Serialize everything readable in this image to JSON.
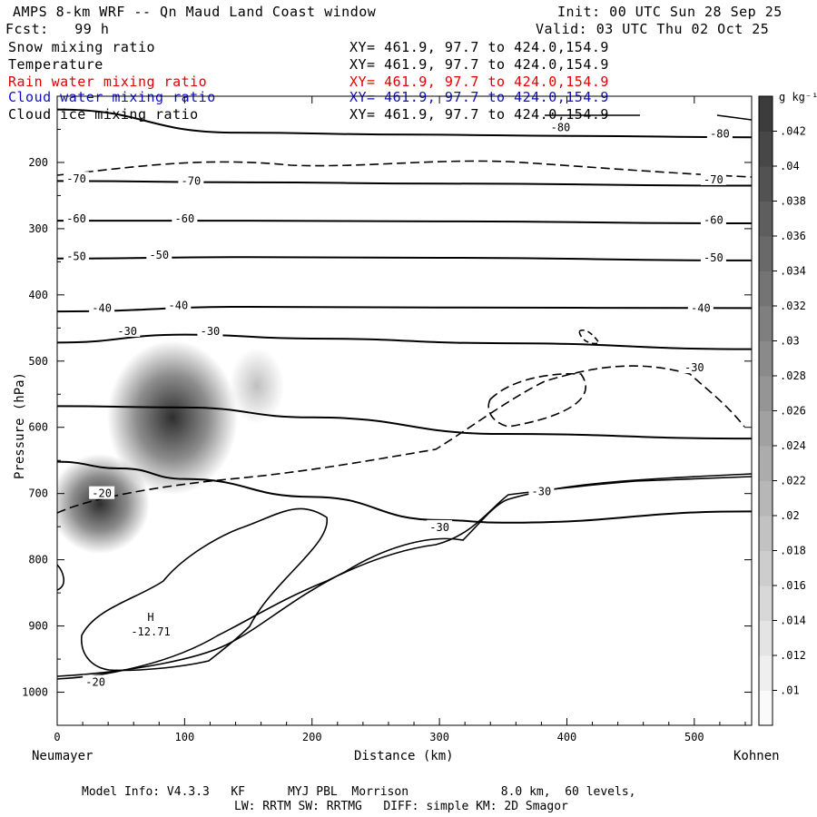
{
  "header": {
    "title": "AMPS 8-km WRF -- Qn Maud Land Coast window",
    "init": "Init: 00 UTC Sun 28 Sep 25",
    "fcst": "Fcst:   99 h",
    "valid": "Valid: 03 UTC Thu 02 Oct 25"
  },
  "fields": [
    {
      "label": "Snow mixing ratio",
      "xy": "XY= 461.9, 97.7 to 424.0,154.9",
      "color": "#000000"
    },
    {
      "label": "Temperature",
      "xy": "XY= 461.9, 97.7 to 424.0,154.9",
      "color": "#000000"
    },
    {
      "label": "Rain water mixing ratio",
      "xy": "XY= 461.9, 97.7 to 424.0,154.9",
      "color": "#e00000"
    },
    {
      "label": "Cloud water mixing ratio",
      "xy": "XY= 461.9, 97.7 to 424.0,154.9",
      "color": "#1010c0"
    },
    {
      "label": "Cloud ice mixing ratio",
      "xy": "XY= 461.9, 97.7 to 424.0,154.9",
      "color": "#000000"
    }
  ],
  "chart_data": {
    "type": "heatmap",
    "xlabel": "Distance (km)",
    "ylabel": "Pressure (hPa)",
    "x_ticks": [
      0,
      100,
      200,
      300,
      400,
      500
    ],
    "y_ticks": [
      200,
      300,
      400,
      500,
      600,
      700,
      800,
      900,
      1000
    ],
    "xlim": [
      0,
      545
    ],
    "ylim": [
      100,
      1050
    ],
    "x_start_label": "Neumayer",
    "x_end_label": "Kohnen",
    "colorbar_unit": "g kg⁻¹",
    "colorbar_ticks": [
      ".01",
      ".012",
      ".014",
      ".016",
      ".018",
      ".02",
      ".022",
      ".024",
      ".026",
      ".028",
      ".03",
      ".032",
      ".034",
      ".036",
      ".038",
      ".04",
      ".042"
    ],
    "temperature_isotherms": [
      {
        "level": -80,
        "points": [
          [
            0,
            120
          ],
          [
            140,
            155
          ],
          [
            280,
            158
          ],
          [
            405,
            160
          ],
          [
            545,
            162
          ]
        ]
      },
      {
        "level": -70,
        "points": [
          [
            0,
            228
          ],
          [
            150,
            230
          ],
          [
            300,
            232
          ],
          [
            545,
            235
          ]
        ]
      },
      {
        "level": -60,
        "points": [
          [
            0,
            288
          ],
          [
            150,
            288
          ],
          [
            300,
            289
          ],
          [
            545,
            292
          ]
        ]
      },
      {
        "level": -50,
        "points": [
          [
            0,
            345
          ],
          [
            150,
            343
          ],
          [
            300,
            344
          ],
          [
            545,
            348
          ]
        ]
      },
      {
        "level": -40,
        "points": [
          [
            0,
            425
          ],
          [
            150,
            418
          ],
          [
            300,
            419
          ],
          [
            545,
            420
          ]
        ]
      },
      {
        "level": -30,
        "points": [
          [
            0,
            472
          ],
          [
            100,
            460
          ],
          [
            200,
            466
          ],
          [
            350,
            473
          ],
          [
            545,
            482
          ]
        ]
      },
      {
        "level": -30,
        "points": [
          [
            0,
            568
          ],
          [
            100,
            570
          ],
          [
            200,
            585
          ],
          [
            350,
            610
          ],
          [
            545,
            617
          ]
        ]
      },
      {
        "level": -20,
        "points": [
          [
            0,
            652
          ],
          [
            50,
            662
          ],
          [
            100,
            678
          ],
          [
            200,
            705
          ],
          [
            300,
            740
          ],
          [
            350,
            744
          ],
          [
            545,
            727
          ]
        ]
      }
    ],
    "contour_labels": [
      {
        "text": "-80",
        "x": 395,
        "y": 147
      },
      {
        "text": "-80",
        "x": 520,
        "y": 157
      },
      {
        "text": "-70",
        "x": 15,
        "y": 225
      },
      {
        "text": "-70",
        "x": 105,
        "y": 228
      },
      {
        "text": "-70",
        "x": 515,
        "y": 226
      },
      {
        "text": "-60",
        "x": 15,
        "y": 285
      },
      {
        "text": "-60",
        "x": 100,
        "y": 285
      },
      {
        "text": "-60",
        "x": 515,
        "y": 287
      },
      {
        "text": "-50",
        "x": 15,
        "y": 342
      },
      {
        "text": "-50",
        "x": 80,
        "y": 340
      },
      {
        "text": "-50",
        "x": 515,
        "y": 344
      },
      {
        "text": "-40",
        "x": 35,
        "y": 420
      },
      {
        "text": "-40",
        "x": 95,
        "y": 416
      },
      {
        "text": "-40",
        "x": 505,
        "y": 420
      },
      {
        "text": "-30",
        "x": 55,
        "y": 455
      },
      {
        "text": "-30",
        "x": 120,
        "y": 455
      },
      {
        "text": "-30",
        "x": 500,
        "y": 510
      },
      {
        "text": "-30",
        "x": 380,
        "y": 697
      },
      {
        "text": "-30",
        "x": 300,
        "y": 751
      },
      {
        "text": "-20",
        "x": 35,
        "y": 700
      },
      {
        "text": "-20",
        "x": 30,
        "y": 985
      }
    ],
    "extremum": {
      "label": "H",
      "value": "-12.71",
      "x": 57,
      "y": 928
    },
    "shaded_maxima": [
      {
        "x": 95,
        "p": 565,
        "value": 0.042
      },
      {
        "x": 35,
        "p": 705,
        "value": 0.038
      },
      {
        "x": 160,
        "p": 540,
        "value": 0.015
      }
    ]
  },
  "footer": {
    "line1": "Model Info: V4.3.3   KF      MYJ PBL  Morrison             8.0 km,  60 levels,",
    "line2": "LW: RRTM SW: RRTMG   DIFF: simple KM: 2D Smagor"
  }
}
